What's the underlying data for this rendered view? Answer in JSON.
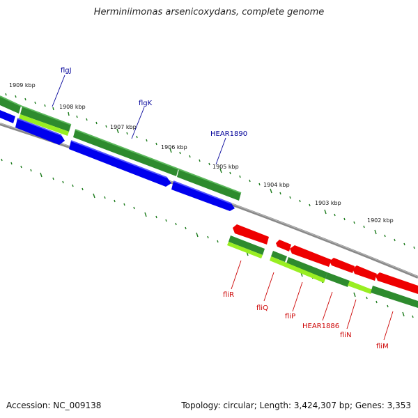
{
  "title": "Herminiimonas arsenicoxydans, complete genome",
  "footer": {
    "accession": "Accession: NC_009138",
    "topology": "Topology: circular; Length: 3,424,307 bp; Genes: 3,353"
  },
  "colors": {
    "forward_cds": "#2e8b2e",
    "forward_gene": "#0000ee",
    "reverse_cds": "#ee0000",
    "rna_like": "#99ee22",
    "label_forward": "#000099",
    "label_reverse": "#cc0000",
    "backbone": "#888888",
    "tick": "#1a7a1a"
  },
  "scale_labels": [
    "1909 kbp",
    "1908 kbp",
    "1907 kbp",
    "1906 kbp",
    "1905 kbp",
    "1904 kbp",
    "1903 kbp",
    "1902 kbp"
  ],
  "forward_genes": [
    {
      "name": "flgJ"
    },
    {
      "name": "flgK"
    },
    {
      "name": "HEAR1890"
    }
  ],
  "reverse_genes": [
    {
      "name": "fliR"
    },
    {
      "name": "fliQ"
    },
    {
      "name": "fliP"
    },
    {
      "name": "HEAR1886"
    },
    {
      "name": "fliN"
    },
    {
      "name": "fliM"
    }
  ]
}
